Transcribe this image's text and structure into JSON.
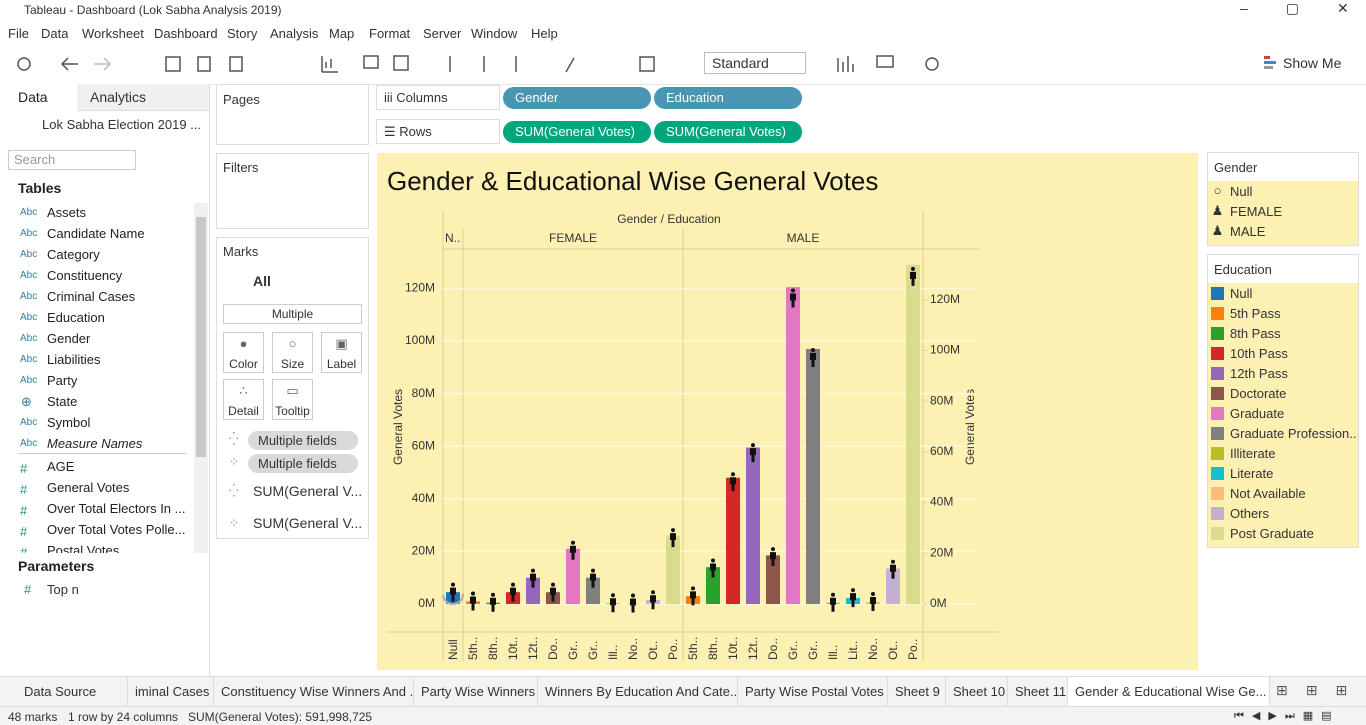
{
  "window_title": "Tableau - Dashboard (Lok Sabha Analysis 2019)",
  "menu": [
    "File",
    "Data",
    "Worksheet",
    "Dashboard",
    "Story",
    "Analysis",
    "Map",
    "Format",
    "Server",
    "Window",
    "Help"
  ],
  "toolbar": {
    "view": "Standard",
    "show_me": "Show Me"
  },
  "data_pane": {
    "tabs": [
      "Data",
      "Analytics"
    ],
    "datasource": "Lok Sabha Election 2019 ...",
    "search": "Search",
    "tables_heading": "Tables",
    "fields": [
      {
        "type": "Abc",
        "name": "Assets"
      },
      {
        "type": "Abc",
        "name": "Candidate Name"
      },
      {
        "type": "Abc",
        "name": "Category"
      },
      {
        "type": "Abc",
        "name": "Constituency"
      },
      {
        "type": "Abc",
        "name": "Criminal Cases"
      },
      {
        "type": "Abc",
        "name": "Education"
      },
      {
        "type": "Abc",
        "name": "Gender"
      },
      {
        "type": "Abc",
        "name": "Liabilities"
      },
      {
        "type": "Abc",
        "name": "Party"
      },
      {
        "name": "State"
      },
      {
        "type": "Abc",
        "name": "Symbol"
      },
      {
        "type": "Abc",
        "name": "Measure Names"
      },
      {
        "type": "#",
        "name": "AGE"
      },
      {
        "type": "#",
        "name": "General Votes"
      },
      {
        "type": "#",
        "name": "Over Total Electors In ..."
      },
      {
        "type": "#",
        "name": "Over Total Votes Polle..."
      },
      {
        "type": "#",
        "name": "Postal Votes"
      }
    ],
    "parameters_heading": "Parameters",
    "parameters": [
      {
        "type": "#",
        "name": "Top n"
      }
    ]
  },
  "shelves": {
    "pages": "Pages",
    "filters": "Filters",
    "marks": "Marks",
    "marks_all": "All",
    "mark_type": "Multiple",
    "mark_buttons": [
      "Color",
      "Size",
      "Label",
      "Detail",
      "Tooltip"
    ],
    "mark_fields": [
      "Multiple fields",
      "Multiple fields",
      "SUM(General V...",
      "SUM(General V..."
    ],
    "columns_label": "Columns",
    "columns": [
      "Gender",
      "Education"
    ],
    "rows_label": "Rows",
    "rows": [
      "SUM(General Votes)",
      "SUM(General Votes)"
    ]
  },
  "chart_data": {
    "type": "bar",
    "title": "Gender & Educational Wise General Votes",
    "header": "Gender / Education",
    "panes": [
      "N..",
      "FEMALE",
      "MALE"
    ],
    "ylabel": "General Votes",
    "y2label": "General Votes",
    "categories": [
      "Null",
      "5th..",
      "8th..",
      "10t..",
      "12t..",
      "Do..",
      "Gr..",
      "Gr..",
      "Ill..",
      "No..",
      "Ot..",
      "Po..",
      "5th..",
      "8th..",
      "10t..",
      "12t..",
      "Do..",
      "Gr..",
      "Gr..",
      "Ill..",
      "Lit..",
      "No..",
      "Ot..",
      "Po.."
    ],
    "values": [
      4500000,
      1000000,
      500000,
      4500000,
      10000000,
      4500000,
      21000000,
      10000000,
      300000,
      200000,
      1500000,
      26000000,
      3000000,
      14000000,
      48000000,
      59500000,
      18500000,
      120500000,
      97000000,
      500000,
      2300000,
      800000,
      13500000,
      129000000
    ],
    "colors": [
      "#1f77b4",
      "#ff7f0e",
      "#2ca02c",
      "#d62728",
      "#9467bd",
      "#8c564b",
      "#e377c2",
      "#7f7f7f",
      "#bcbd22",
      "#ffbb78",
      "#c5b0d5",
      "#dbdb8d",
      "#ff7f0e",
      "#2ca02c",
      "#d62728",
      "#9467bd",
      "#8c564b",
      "#e377c2",
      "#7f7f7f",
      "#bcbd22",
      "#17becf",
      "#ffbb78",
      "#c5b0d5",
      "#dbdb8d"
    ],
    "ylim": [
      0,
      135000000
    ],
    "yticks": [
      {
        "value": 0,
        "label": "0M"
      },
      {
        "value": 20000000,
        "label": "20M"
      },
      {
        "value": 40000000,
        "label": "40M"
      },
      {
        "value": 60000000,
        "label": "60M"
      },
      {
        "value": 80000000,
        "label": "80M"
      },
      {
        "value": 100000000,
        "label": "100M"
      },
      {
        "value": 120000000,
        "label": "120M"
      }
    ],
    "y2lim": [
      0,
      140000000
    ],
    "y2ticks": [
      {
        "value": 0,
        "label": "0M"
      },
      {
        "value": 20000000,
        "label": "20M"
      },
      {
        "value": 40000000,
        "label": "40M"
      },
      {
        "value": 60000000,
        "label": "60M"
      },
      {
        "value": 80000000,
        "label": "80M"
      },
      {
        "value": 100000000,
        "label": "100M"
      },
      {
        "value": 120000000,
        "label": "120M"
      }
    ],
    "grid": true
  },
  "legends": [
    {
      "title": "Gender",
      "items": [
        {
          "name": "Null"
        },
        {
          "name": "FEMALE"
        },
        {
          "name": "MALE"
        }
      ]
    },
    {
      "title": "Education",
      "items": [
        {
          "name": "Null",
          "color": "#1f77b4"
        },
        {
          "name": "5th Pass",
          "color": "#ff7f0e"
        },
        {
          "name": "8th Pass",
          "color": "#2ca02c"
        },
        {
          "name": "10th Pass",
          "color": "#d62728"
        },
        {
          "name": "12th Pass",
          "color": "#9467bd"
        },
        {
          "name": "Doctorate",
          "color": "#8c564b"
        },
        {
          "name": "Graduate",
          "color": "#e377c2"
        },
        {
          "name": "Graduate Profession..",
          "color": "#7f7f7f"
        },
        {
          "name": "Illiterate",
          "color": "#bcbd22"
        },
        {
          "name": "Literate",
          "color": "#17becf"
        },
        {
          "name": "Not Available",
          "color": "#ffbb78"
        },
        {
          "name": "Others",
          "color": "#c5b0d5"
        },
        {
          "name": "Post Graduate",
          "color": "#dbdb8d"
        }
      ]
    }
  ],
  "tabs": [
    "Data Source",
    "iminal Cases",
    "Constituency Wise Winners And ...",
    "Party Wise Winners",
    "Winners By Education And Cate...",
    "Party Wise Postal Votes",
    "Sheet 9",
    "Sheet 10",
    "Sheet 11",
    "Gender & Educational Wise Ge..."
  ],
  "status": [
    "48 marks",
    "1 row by 24 columns",
    "SUM(General Votes): 591,998,725"
  ]
}
